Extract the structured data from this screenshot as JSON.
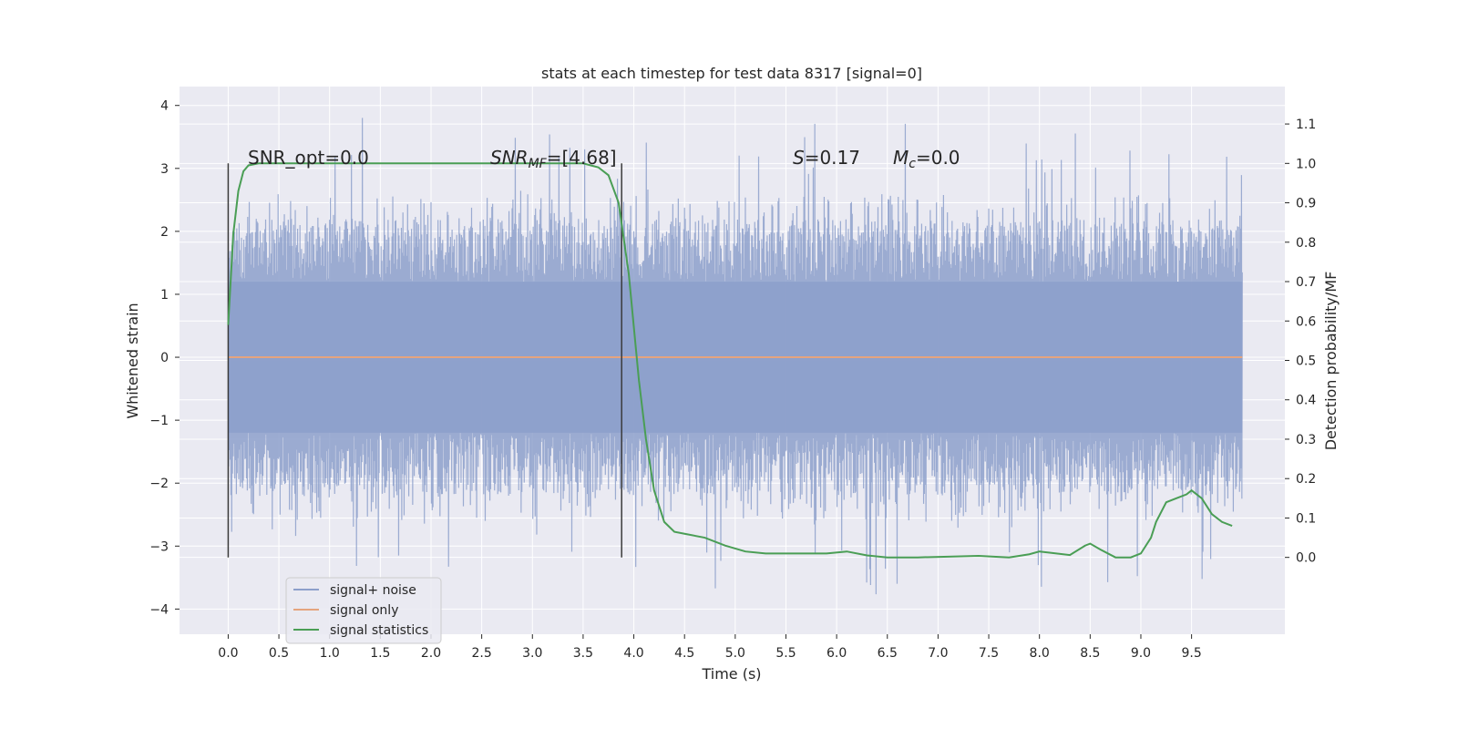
{
  "chart_data": {
    "type": "line",
    "title": "stats at each timestep for test data 8317 [signal=0]",
    "xlabel": "Time (s)",
    "ylabel": "Whitened strain",
    "ylabel_right": "Detection probability/MF",
    "xlim": [
      -0.48,
      10.42
    ],
    "ylim": [
      -4.4,
      4.3
    ],
    "ylim_right": [
      -0.195,
      1.195
    ],
    "x_ticks": [
      0.0,
      0.5,
      1.0,
      1.5,
      2.0,
      2.5,
      3.0,
      3.5,
      4.0,
      4.5,
      5.0,
      5.5,
      6.0,
      6.5,
      7.0,
      7.5,
      8.0,
      8.5,
      9.0,
      9.5
    ],
    "x_tick_labels": [
      "0.0",
      "0.5",
      "1.0",
      "1.5",
      "2.0",
      "2.5",
      "3.0",
      "3.5",
      "4.0",
      "4.5",
      "5.0",
      "5.5",
      "6.0",
      "6.5",
      "7.0",
      "7.5",
      "8.0",
      "8.5",
      "9.0",
      "9.5"
    ],
    "y_ticks": [
      -4,
      -3,
      -2,
      -1,
      0,
      1,
      2,
      3,
      4
    ],
    "y_tick_labels": [
      "−4",
      "−3",
      "−2",
      "−1",
      "0",
      "1",
      "2",
      "3",
      "4"
    ],
    "y_right_ticks": [
      0.0,
      0.1,
      0.2,
      0.3,
      0.4,
      0.5,
      0.6,
      0.7,
      0.8,
      0.9,
      1.0,
      1.1
    ],
    "y_right_tick_labels": [
      "0.0",
      "0.1",
      "0.2",
      "0.3",
      "0.4",
      "0.5",
      "0.6",
      "0.7",
      "0.8",
      "0.9",
      "1.0",
      "1.1"
    ],
    "grid": true,
    "legend_position": "lower-left",
    "annotations": {
      "snr_opt": "SNR_opt=0.0",
      "snr_mf_base": "SNR",
      "snr_mf_sub": "MF",
      "snr_mf_value": "=[4.68]",
      "s_symbol": "S",
      "s_value": "=0.17",
      "mc_base": "M",
      "mc_sub": "c",
      "mc_value": "=0.0"
    },
    "vlines": [
      {
        "x": 0.0,
        "y_range": [
          -3.18,
          3.08
        ]
      },
      {
        "x": 3.88,
        "y_range": [
          -3.18,
          3.08
        ]
      }
    ],
    "series": [
      {
        "name": "signal+ noise",
        "color": "#8da0cb",
        "axis": "left",
        "x_range": [
          0.0,
          10.0
        ],
        "band_amplitude": 1.2,
        "typical_peak": 2.3,
        "max_value": 3.9,
        "min_value": -3.8
      },
      {
        "name": "signal only",
        "color": "#e5a47e",
        "axis": "left",
        "x": [
          0.0,
          10.0
        ],
        "y": [
          0.0,
          0.0
        ]
      },
      {
        "name": "signal statistics",
        "color": "#4a9e55",
        "axis": "right",
        "x": [
          0.0,
          0.05,
          0.1,
          0.15,
          0.2,
          0.3,
          0.5,
          1.0,
          2.0,
          3.0,
          3.5,
          3.65,
          3.75,
          3.85,
          3.95,
          4.05,
          4.12,
          4.2,
          4.3,
          4.4,
          4.5,
          4.7,
          4.9,
          5.1,
          5.3,
          5.6,
          5.9,
          6.1,
          6.3,
          6.5,
          6.8,
          7.1,
          7.4,
          7.7,
          7.9,
          8.0,
          8.1,
          8.3,
          8.45,
          8.5,
          8.6,
          8.75,
          8.9,
          9.0,
          9.1,
          9.15,
          9.25,
          9.35,
          9.45,
          9.5,
          9.6,
          9.7,
          9.8,
          9.9
        ],
        "y": [
          0.59,
          0.82,
          0.93,
          0.98,
          0.995,
          1.0,
          1.0,
          1.0,
          1.0,
          1.0,
          1.0,
          0.99,
          0.97,
          0.9,
          0.72,
          0.45,
          0.3,
          0.17,
          0.09,
          0.065,
          0.06,
          0.05,
          0.03,
          0.015,
          0.01,
          0.01,
          0.01,
          0.015,
          0.005,
          0.0,
          0.0,
          0.002,
          0.004,
          0.0,
          0.008,
          0.015,
          0.012,
          0.006,
          0.03,
          0.035,
          0.02,
          0.0,
          0.0,
          0.01,
          0.05,
          0.09,
          0.14,
          0.15,
          0.16,
          0.17,
          0.15,
          0.11,
          0.09,
          0.08
        ]
      }
    ]
  }
}
